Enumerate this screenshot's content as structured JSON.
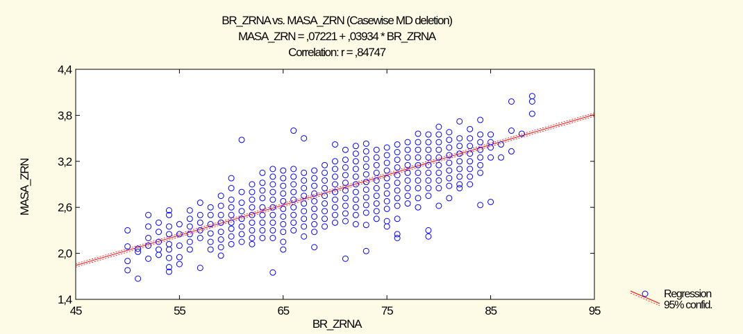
{
  "chart_data": {
    "type": "scatter",
    "title": "BR_ZRNA vs. MASA_ZRN (Casewise MD deletion)",
    "subtitle_equation": "MASA_ZRN = ,07221 + ,03934 * BR_ZRNA",
    "subtitle_correlation": "Correlation: r = ,84747",
    "xlabel": "BR_ZRNA",
    "ylabel": "MASA_ZRN",
    "xlim": [
      45,
      95
    ],
    "ylim": [
      1.4,
      4.4
    ],
    "x_ticks": [
      45,
      55,
      65,
      75,
      85,
      95
    ],
    "x_tick_labels": [
      "45",
      "55",
      "65",
      "75",
      "85",
      "95"
    ],
    "y_ticks": [
      1.4,
      2.0,
      2.6,
      3.2,
      3.8,
      4.4
    ],
    "y_tick_labels": [
      "1,4",
      "2,0",
      "2,6",
      "3,2",
      "3,8",
      "4,4"
    ],
    "grid": false,
    "regression": {
      "intercept": 0.07221,
      "slope": 0.03934
    },
    "legend": [
      "Regression",
      "95% confid."
    ],
    "colors": {
      "points": "#0000ff",
      "regression": "#ff0000",
      "background": "#fdfbe6"
    },
    "points": [
      [
        50,
        2.3
      ],
      [
        50,
        2.09
      ],
      [
        50,
        1.9
      ],
      [
        50,
        1.78
      ],
      [
        51,
        2.06
      ],
      [
        51,
        2.02
      ],
      [
        51,
        1.67
      ],
      [
        52,
        2.5
      ],
      [
        52,
        2.35
      ],
      [
        52,
        2.2
      ],
      [
        52,
        2.1
      ],
      [
        52,
        1.93
      ],
      [
        53,
        2.4
      ],
      [
        53,
        2.28
      ],
      [
        53,
        2.15
      ],
      [
        53,
        2.05
      ],
      [
        53,
        1.98
      ],
      [
        54,
        2.56
      ],
      [
        54,
        2.5
      ],
      [
        54,
        2.35
      ],
      [
        54,
        2.25
      ],
      [
        54,
        2.12
      ],
      [
        54,
        2.05
      ],
      [
        54,
        1.94
      ],
      [
        54,
        1.82
      ],
      [
        54,
        1.76
      ],
      [
        55,
        2.38
      ],
      [
        55,
        2.25
      ],
      [
        55,
        2.1
      ],
      [
        55,
        1.95
      ],
      [
        55,
        1.86
      ],
      [
        56,
        2.56
      ],
      [
        56,
        2.45
      ],
      [
        56,
        2.35
      ],
      [
        56,
        2.25
      ],
      [
        56,
        2.15
      ],
      [
        56,
        2.05
      ],
      [
        57,
        2.66
      ],
      [
        57,
        2.5
      ],
      [
        57,
        2.4
      ],
      [
        57,
        2.3
      ],
      [
        57,
        2.2
      ],
      [
        57,
        1.81
      ],
      [
        58,
        2.6
      ],
      [
        58,
        2.5
      ],
      [
        58,
        2.38
      ],
      [
        58,
        2.26
      ],
      [
        58,
        2.15
      ],
      [
        58,
        2.05
      ],
      [
        59,
        2.75
      ],
      [
        59,
        2.62
      ],
      [
        59,
        2.5
      ],
      [
        59,
        2.4
      ],
      [
        59,
        2.28
      ],
      [
        59,
        2.18
      ],
      [
        59,
        2.08
      ],
      [
        59,
        1.97
      ],
      [
        60,
        2.98
      ],
      [
        60,
        2.85
      ],
      [
        60,
        2.7
      ],
      [
        60,
        2.6
      ],
      [
        60,
        2.5
      ],
      [
        60,
        2.4
      ],
      [
        60,
        2.32
      ],
      [
        60,
        2.22
      ],
      [
        60,
        2.12
      ],
      [
        61,
        3.48
      ],
      [
        61,
        2.8
      ],
      [
        61,
        2.66
      ],
      [
        61,
        2.55
      ],
      [
        61,
        2.45
      ],
      [
        61,
        2.35
      ],
      [
        61,
        2.25
      ],
      [
        61,
        2.15
      ],
      [
        62,
        2.9
      ],
      [
        62,
        2.8
      ],
      [
        62,
        2.7
      ],
      [
        62,
        2.6
      ],
      [
        62,
        2.5
      ],
      [
        62,
        2.4
      ],
      [
        62,
        2.3
      ],
      [
        62,
        2.2
      ],
      [
        62,
        2.12
      ],
      [
        63,
        3.05
      ],
      [
        63,
        2.92
      ],
      [
        63,
        2.82
      ],
      [
        63,
        2.72
      ],
      [
        63,
        2.6
      ],
      [
        63,
        2.5
      ],
      [
        63,
        2.4
      ],
      [
        63,
        2.3
      ],
      [
        63,
        2.2
      ],
      [
        64,
        3.1
      ],
      [
        64,
        3.0
      ],
      [
        64,
        2.9
      ],
      [
        64,
        2.8
      ],
      [
        64,
        2.7
      ],
      [
        64,
        2.6
      ],
      [
        64,
        2.5
      ],
      [
        64,
        2.4
      ],
      [
        64,
        2.3
      ],
      [
        64,
        2.2
      ],
      [
        64,
        1.75
      ],
      [
        65,
        3.08
      ],
      [
        65,
        2.98
      ],
      [
        65,
        2.88
      ],
      [
        65,
        2.78
      ],
      [
        65,
        2.68
      ],
      [
        65,
        2.58
      ],
      [
        65,
        2.48
      ],
      [
        65,
        2.38
      ],
      [
        65,
        2.28
      ],
      [
        65,
        2.15
      ],
      [
        65,
        2.05
      ],
      [
        66,
        3.6
      ],
      [
        66,
        3.1
      ],
      [
        66,
        3.0
      ],
      [
        66,
        2.9
      ],
      [
        66,
        2.8
      ],
      [
        66,
        2.7
      ],
      [
        66,
        2.6
      ],
      [
        66,
        2.5
      ],
      [
        66,
        2.4
      ],
      [
        66,
        2.3
      ],
      [
        67,
        3.5
      ],
      [
        67,
        3.05
      ],
      [
        67,
        2.95
      ],
      [
        67,
        2.85
      ],
      [
        67,
        2.75
      ],
      [
        67,
        2.65
      ],
      [
        67,
        2.55
      ],
      [
        67,
        2.45
      ],
      [
        67,
        2.35
      ],
      [
        67,
        2.22
      ],
      [
        68,
        3.08
      ],
      [
        68,
        2.98
      ],
      [
        68,
        2.88
      ],
      [
        68,
        2.78
      ],
      [
        68,
        2.68
      ],
      [
        68,
        2.58
      ],
      [
        68,
        2.48
      ],
      [
        68,
        2.38
      ],
      [
        68,
        2.28
      ],
      [
        68,
        2.08
      ],
      [
        69,
        3.15
      ],
      [
        69,
        3.05
      ],
      [
        69,
        2.95
      ],
      [
        69,
        2.85
      ],
      [
        69,
        2.75
      ],
      [
        69,
        2.65
      ],
      [
        69,
        2.55
      ],
      [
        69,
        2.45
      ],
      [
        69,
        2.35
      ],
      [
        70,
        3.42
      ],
      [
        70,
        3.2
      ],
      [
        70,
        3.1
      ],
      [
        70,
        3.0
      ],
      [
        70,
        2.9
      ],
      [
        70,
        2.8
      ],
      [
        70,
        2.7
      ],
      [
        70,
        2.6
      ],
      [
        70,
        2.5
      ],
      [
        70,
        2.4
      ],
      [
        71,
        3.35
      ],
      [
        71,
        3.22
      ],
      [
        71,
        3.12
      ],
      [
        71,
        3.02
      ],
      [
        71,
        2.92
      ],
      [
        71,
        2.82
      ],
      [
        71,
        2.72
      ],
      [
        71,
        2.62
      ],
      [
        71,
        2.52
      ],
      [
        71,
        2.42
      ],
      [
        71,
        1.93
      ],
      [
        72,
        3.4
      ],
      [
        72,
        3.3
      ],
      [
        72,
        3.2
      ],
      [
        72,
        3.1
      ],
      [
        72,
        3.0
      ],
      [
        72,
        2.9
      ],
      [
        72,
        2.8
      ],
      [
        72,
        2.7
      ],
      [
        72,
        2.6
      ],
      [
        72,
        2.5
      ],
      [
        72,
        2.38
      ],
      [
        73,
        3.43
      ],
      [
        73,
        3.33
      ],
      [
        73,
        3.23
      ],
      [
        73,
        3.13
      ],
      [
        73,
        3.03
      ],
      [
        73,
        2.93
      ],
      [
        73,
        2.83
      ],
      [
        73,
        2.73
      ],
      [
        73,
        2.63
      ],
      [
        73,
        2.53
      ],
      [
        73,
        2.37
      ],
      [
        73,
        2.03
      ],
      [
        74,
        3.35
      ],
      [
        74,
        3.25
      ],
      [
        74,
        3.15
      ],
      [
        74,
        3.05
      ],
      [
        74,
        2.95
      ],
      [
        74,
        2.85
      ],
      [
        74,
        2.75
      ],
      [
        74,
        2.65
      ],
      [
        74,
        2.55
      ],
      [
        74,
        2.45
      ],
      [
        75,
        3.38
      ],
      [
        75,
        3.28
      ],
      [
        75,
        3.18
      ],
      [
        75,
        3.08
      ],
      [
        75,
        2.98
      ],
      [
        75,
        2.88
      ],
      [
        75,
        2.78
      ],
      [
        75,
        2.68
      ],
      [
        75,
        2.58
      ],
      [
        75,
        2.42
      ],
      [
        75,
        2.35
      ],
      [
        76,
        3.42
      ],
      [
        76,
        3.32
      ],
      [
        76,
        3.22
      ],
      [
        76,
        3.12
      ],
      [
        76,
        3.02
      ],
      [
        76,
        2.92
      ],
      [
        76,
        2.82
      ],
      [
        76,
        2.72
      ],
      [
        76,
        2.62
      ],
      [
        76,
        2.45
      ],
      [
        76,
        2.25
      ],
      [
        76,
        2.2
      ],
      [
        77,
        3.45
      ],
      [
        77,
        3.35
      ],
      [
        77,
        3.25
      ],
      [
        77,
        3.15
      ],
      [
        77,
        3.05
      ],
      [
        77,
        2.95
      ],
      [
        77,
        2.85
      ],
      [
        77,
        2.75
      ],
      [
        77,
        2.65
      ],
      [
        78,
        3.56
      ],
      [
        78,
        3.45
      ],
      [
        78,
        3.35
      ],
      [
        78,
        3.25
      ],
      [
        78,
        3.15
      ],
      [
        78,
        3.05
      ],
      [
        78,
        2.95
      ],
      [
        78,
        2.85
      ],
      [
        78,
        2.72
      ],
      [
        78,
        2.6
      ],
      [
        79,
        3.55
      ],
      [
        79,
        3.45
      ],
      [
        79,
        3.35
      ],
      [
        79,
        3.25
      ],
      [
        79,
        3.15
      ],
      [
        79,
        3.05
      ],
      [
        79,
        2.95
      ],
      [
        79,
        2.85
      ],
      [
        79,
        2.75
      ],
      [
        79,
        2.3
      ],
      [
        79,
        2.22
      ],
      [
        80,
        3.65
      ],
      [
        80,
        3.55
      ],
      [
        80,
        3.45
      ],
      [
        80,
        3.35
      ],
      [
        80,
        3.25
      ],
      [
        80,
        3.15
      ],
      [
        80,
        3.05
      ],
      [
        80,
        2.95
      ],
      [
        80,
        2.85
      ],
      [
        80,
        2.62
      ],
      [
        81,
        3.58
      ],
      [
        81,
        3.48
      ],
      [
        81,
        3.38
      ],
      [
        81,
        3.28
      ],
      [
        81,
        3.18
      ],
      [
        81,
        3.08
      ],
      [
        81,
        2.98
      ],
      [
        81,
        2.88
      ],
      [
        81,
        2.72
      ],
      [
        82,
        3.72
      ],
      [
        82,
        3.5
      ],
      [
        82,
        3.4
      ],
      [
        82,
        3.3
      ],
      [
        82,
        3.2
      ],
      [
        82,
        3.1
      ],
      [
        82,
        3.0
      ],
      [
        82,
        2.9
      ],
      [
        82,
        2.85
      ],
      [
        83,
        3.62
      ],
      [
        83,
        3.5
      ],
      [
        83,
        3.4
      ],
      [
        83,
        3.3
      ],
      [
        83,
        3.2
      ],
      [
        83,
        3.1
      ],
      [
        83,
        3.0
      ],
      [
        83,
        2.9
      ],
      [
        84,
        3.74
      ],
      [
        84,
        3.55
      ],
      [
        84,
        3.45
      ],
      [
        84,
        3.35
      ],
      [
        84,
        3.25
      ],
      [
        84,
        3.15
      ],
      [
        84,
        3.05
      ],
      [
        84,
        2.63
      ],
      [
        85,
        3.55
      ],
      [
        85,
        3.45
      ],
      [
        85,
        3.38
      ],
      [
        85,
        3.25
      ],
      [
        85,
        2.67
      ],
      [
        86,
        3.42
      ],
      [
        86,
        3.25
      ],
      [
        87,
        3.98
      ],
      [
        87,
        3.6
      ],
      [
        87,
        3.33
      ],
      [
        88,
        3.56
      ],
      [
        89,
        4.05
      ],
      [
        89,
        3.98
      ],
      [
        89,
        3.82
      ]
    ]
  }
}
